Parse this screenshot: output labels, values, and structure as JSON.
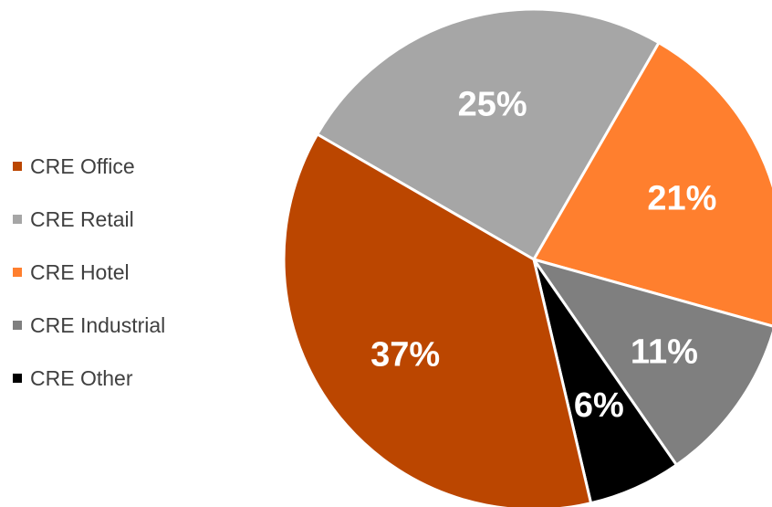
{
  "chart_data": {
    "type": "pie",
    "title": "",
    "categories": [
      "CRE Office",
      "CRE Retail",
      "CRE Hotel",
      "CRE Industrial",
      "CRE Other"
    ],
    "values": [
      37,
      25,
      21,
      11,
      6
    ],
    "labels": [
      "37%",
      "25%",
      "21%",
      "11%",
      "6%"
    ],
    "colors": [
      "#BB4600",
      "#A6A6A6",
      "#FF7F2E",
      "#7F7F7F",
      "#000000"
    ],
    "legend_position": "left",
    "slice_order": [
      "CRE Retail",
      "CRE Hotel",
      "CRE Industrial",
      "CRE Other",
      "CRE Office"
    ]
  }
}
